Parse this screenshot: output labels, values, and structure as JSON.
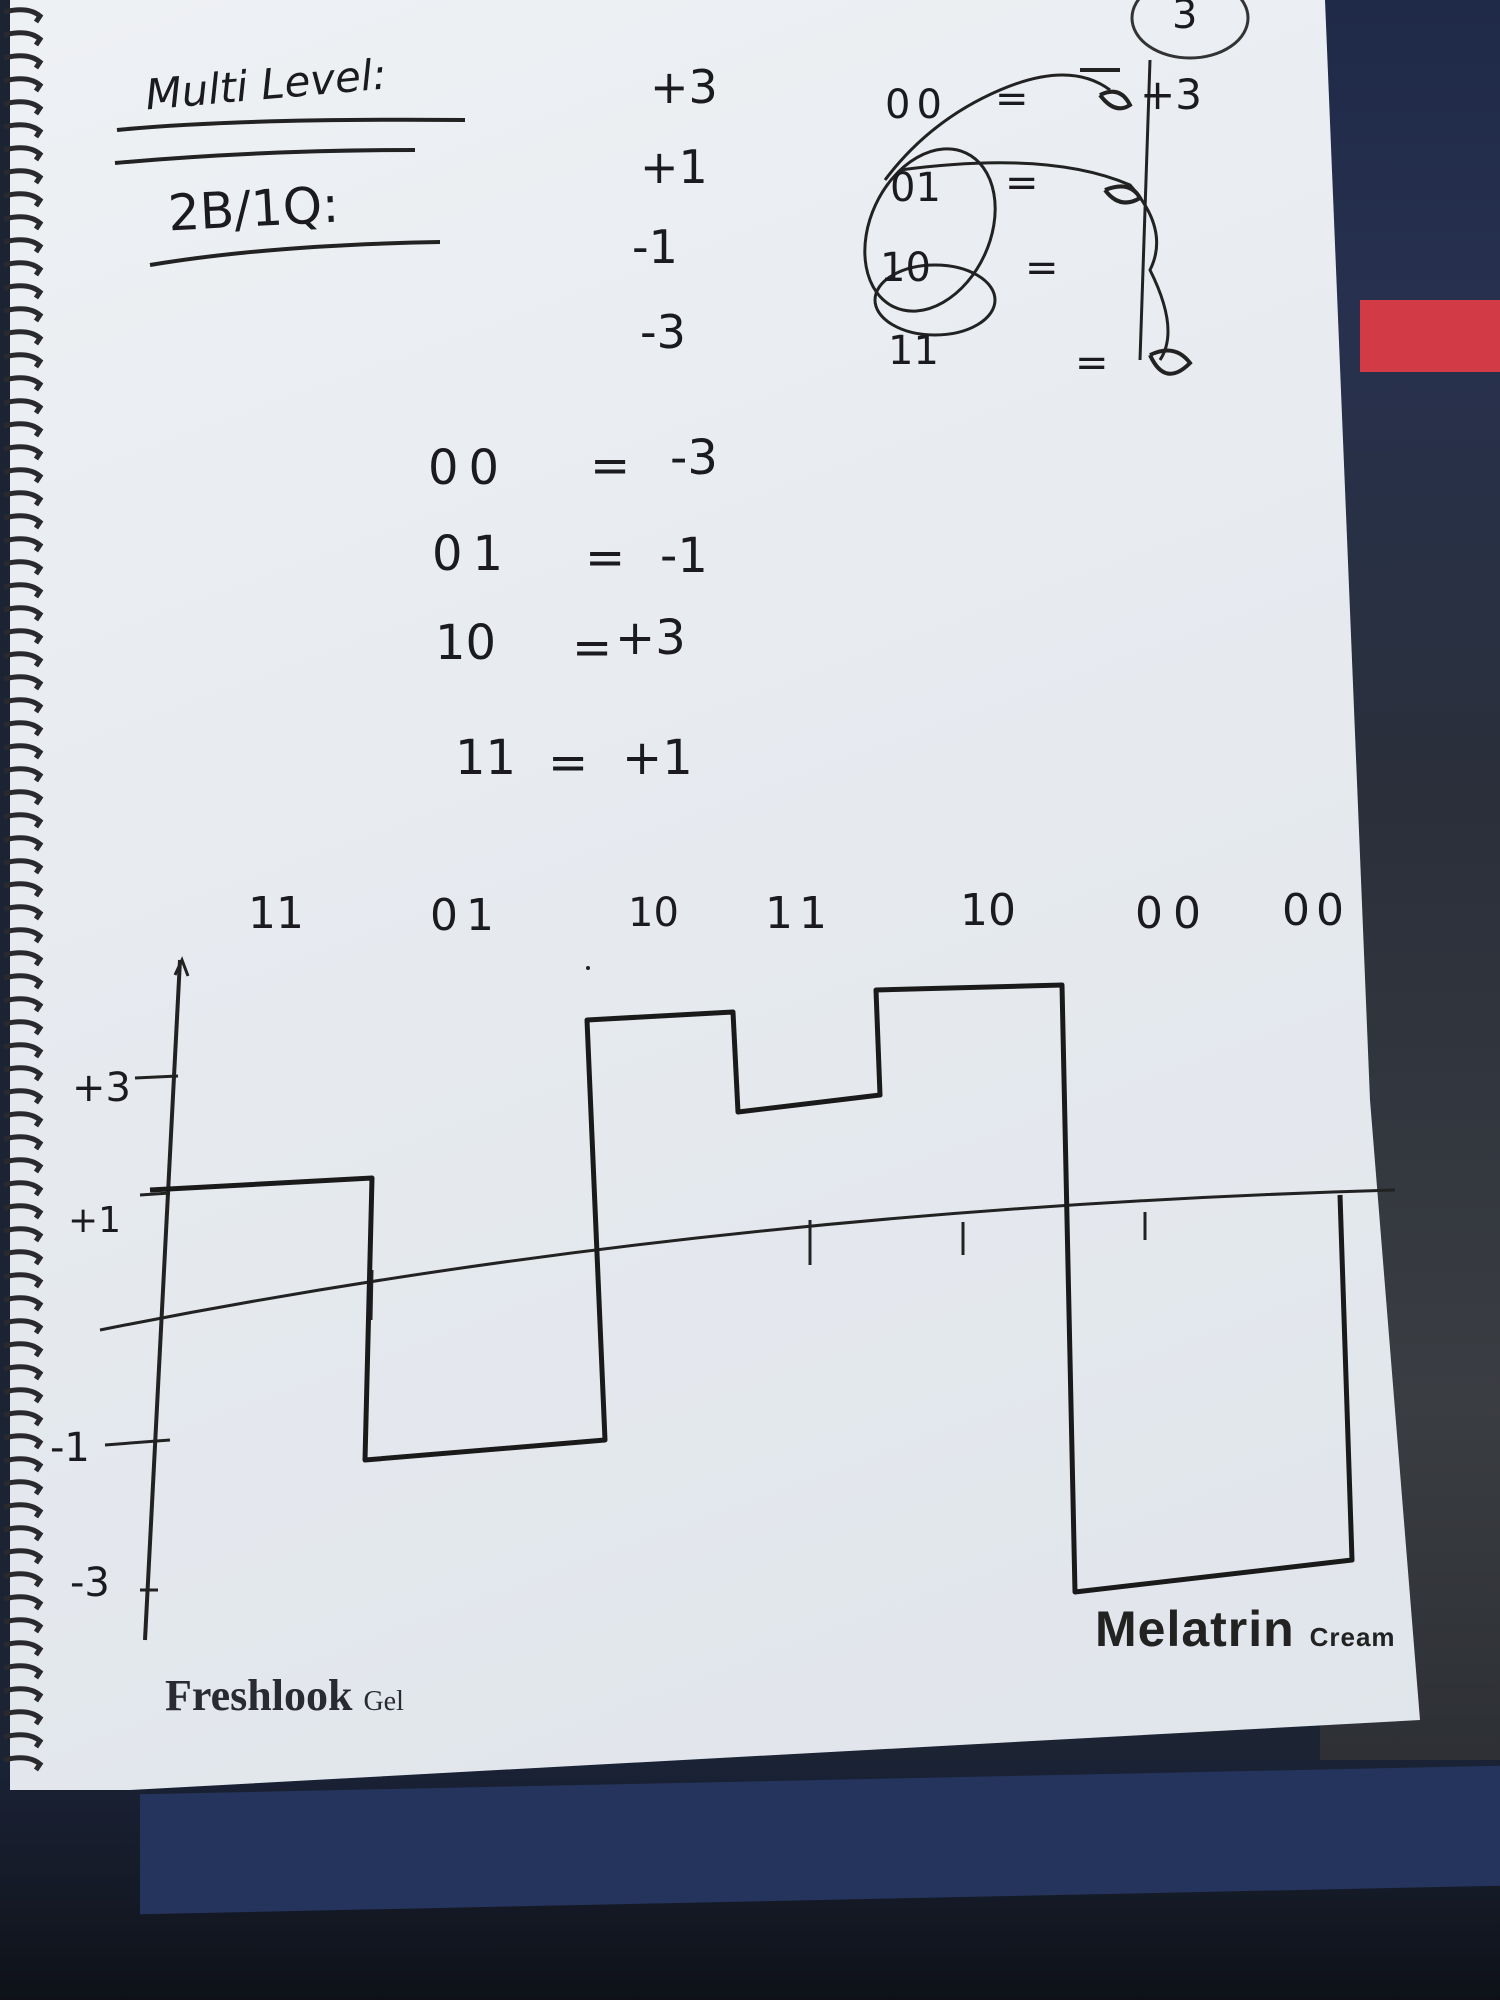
{
  "note": {
    "title": "Multi Level:",
    "subtitle": "2B/1Q:",
    "page_number": "3",
    "level_list": [
      "+3",
      "+1",
      "-1",
      "-3"
    ],
    "scratch_map": {
      "rows": [
        {
          "code": "00",
          "eq": "=",
          "value": "+3"
        },
        {
          "code": "01",
          "eq": "=",
          "value": ""
        },
        {
          "code": "10",
          "eq": "=",
          "value": ""
        },
        {
          "code": "11",
          "eq": "=",
          "value": ""
        }
      ]
    },
    "mapping": [
      {
        "code": "00",
        "eq": "=",
        "value": "-3"
      },
      {
        "code": "01",
        "eq": "=",
        "value": "-1"
      },
      {
        "code": "10",
        "eq": "=",
        "value": "+3"
      },
      {
        "code": "11",
        "eq": "=",
        "value": "+1"
      }
    ],
    "bit_sequence": [
      "11",
      "01",
      "10",
      "11",
      "10",
      "00",
      "00"
    ],
    "waveform": {
      "y_ticks": [
        "+3",
        "+1",
        "-1",
        "-3"
      ],
      "levels": [
        1,
        -1,
        3,
        1,
        3,
        -3
      ]
    }
  },
  "print": {
    "left_brand": "Freshlook",
    "left_suffix": "Gel",
    "right_brand": "Melatrin",
    "right_suffix": "Cream"
  }
}
